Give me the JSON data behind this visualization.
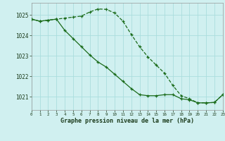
{
  "hours": [
    0,
    1,
    2,
    3,
    4,
    5,
    6,
    7,
    8,
    9,
    10,
    11,
    12,
    13,
    14,
    15,
    16,
    17,
    18,
    19,
    20,
    21,
    22,
    23
  ],
  "line1": [
    1024.8,
    1024.7,
    1024.75,
    1024.8,
    1024.85,
    1024.9,
    1024.95,
    1025.15,
    1025.3,
    1025.28,
    1025.1,
    1024.7,
    1024.05,
    1023.45,
    1022.95,
    1022.55,
    1022.15,
    1021.55,
    1021.05,
    1020.9,
    1020.7,
    1020.7,
    1020.72,
    1021.1
  ],
  "line2": [
    1024.8,
    1024.7,
    1024.75,
    1024.8,
    1024.25,
    1023.85,
    1023.45,
    1023.05,
    1022.7,
    1022.45,
    1022.1,
    1021.75,
    1021.4,
    1021.1,
    1021.05,
    1021.05,
    1021.1,
    1021.1,
    1020.9,
    1020.85,
    1020.7,
    1020.7,
    1020.72,
    1021.1
  ],
  "bg_color": "#d0f0f0",
  "grid_color_major": "#aadddd",
  "grid_color_minor": "#bbdddd",
  "line_color": "#1a6b1a",
  "ylabel_ticks": [
    1021,
    1022,
    1023,
    1024,
    1025
  ],
  "xlabel_ticks": [
    0,
    1,
    2,
    3,
    4,
    5,
    6,
    7,
    8,
    9,
    10,
    11,
    12,
    13,
    14,
    15,
    16,
    17,
    18,
    19,
    20,
    21,
    22,
    23
  ],
  "xlabel": "Graphe pression niveau de la mer (hPa)",
  "ylim": [
    1020.35,
    1025.6
  ],
  "xlim": [
    0,
    23
  ]
}
